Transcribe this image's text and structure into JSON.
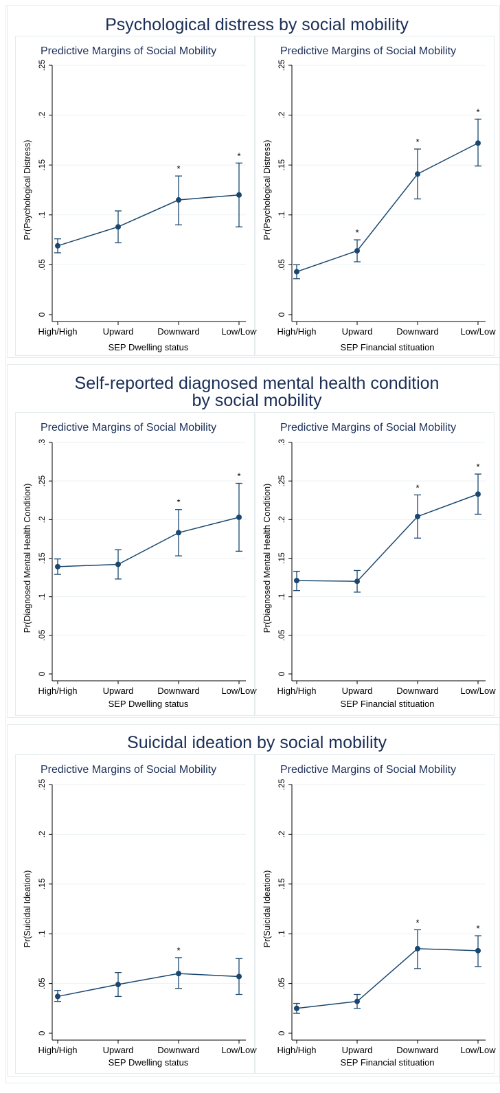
{
  "colors": {
    "line": "#1a476f",
    "text_title": "#1a2e57",
    "text": "#000000",
    "grid": "#eaf2f3",
    "frame": "#e4ecee"
  },
  "chart_data": [
    {
      "title": "Psychological distress by social mobility",
      "panels": [
        {
          "type": "line",
          "title": "Predictive Margins of Social Mobility",
          "xlabel": "SEP Dwelling status",
          "ylabel": "Pr(Psychological Distress)",
          "categories": [
            "High/High",
            "Upward",
            "Downward",
            "Low/Low"
          ],
          "values": [
            0.069,
            0.088,
            0.115,
            0.12
          ],
          "ci_low": [
            0.062,
            0.072,
            0.09,
            0.088
          ],
          "ci_high": [
            0.076,
            0.104,
            0.139,
            0.152
          ],
          "significant": [
            false,
            false,
            true,
            true
          ],
          "significance_mark": "*",
          "ylim": [
            0,
            0.25
          ],
          "yticks": [
            0,
            0.05,
            0.1,
            0.15,
            0.2,
            0.25
          ],
          "ytick_labels": [
            "0",
            ".05",
            ".1",
            ".15",
            ".2",
            ".25"
          ],
          "grid": true
        },
        {
          "type": "line",
          "title": "Predictive Margins of Social Mobility",
          "xlabel": "SEP Financial stituation",
          "ylabel": "Pr(Psychological Distress)",
          "categories": [
            "High/High",
            "Upward",
            "Downward",
            "Low/Low"
          ],
          "values": [
            0.043,
            0.064,
            0.141,
            0.172
          ],
          "ci_low": [
            0.036,
            0.053,
            0.116,
            0.149
          ],
          "ci_high": [
            0.05,
            0.075,
            0.166,
            0.196
          ],
          "significant": [
            false,
            true,
            true,
            true
          ],
          "significance_mark": "*",
          "ylim": [
            0,
            0.25
          ],
          "yticks": [
            0,
            0.05,
            0.1,
            0.15,
            0.2,
            0.25
          ],
          "ytick_labels": [
            "0",
            ".05",
            ".1",
            ".15",
            ".2",
            ".25"
          ],
          "grid": true
        }
      ]
    },
    {
      "title": "Self-reported diagnosed mental health condition",
      "title_line2": "by social mobility",
      "panels": [
        {
          "type": "line",
          "title": "Predictive Margins of Social Mobility",
          "xlabel": "SEP Dwelling status",
          "ylabel": "Pr(Diagnosed Mental Health Condition)",
          "categories": [
            "High/High",
            "Upward",
            "Downward",
            "Low/Low"
          ],
          "values": [
            0.139,
            0.142,
            0.183,
            0.203
          ],
          "ci_low": [
            0.129,
            0.123,
            0.153,
            0.159
          ],
          "ci_high": [
            0.149,
            0.161,
            0.213,
            0.247
          ],
          "significant": [
            false,
            false,
            true,
            true
          ],
          "significance_mark": "*",
          "ylim": [
            0,
            0.3
          ],
          "yticks": [
            0,
            0.05,
            0.1,
            0.15,
            0.2,
            0.25,
            0.3
          ],
          "ytick_labels": [
            "0",
            ".05",
            ".1",
            ".15",
            ".2",
            ".25",
            ".3"
          ],
          "grid": true
        },
        {
          "type": "line",
          "title": "Predictive Margins of Social Mobility",
          "xlabel": "SEP Financial stituation",
          "ylabel": "Pr(Diagnosed Mental Health Condition)",
          "categories": [
            "High/High",
            "Upward",
            "Downward",
            "Low/Low"
          ],
          "values": [
            0.121,
            0.12,
            0.204,
            0.233
          ],
          "ci_low": [
            0.108,
            0.106,
            0.176,
            0.207
          ],
          "ci_high": [
            0.133,
            0.134,
            0.232,
            0.259
          ],
          "significant": [
            false,
            false,
            true,
            true
          ],
          "significance_mark": "*",
          "ylim": [
            0,
            0.3
          ],
          "yticks": [
            0,
            0.05,
            0.1,
            0.15,
            0.2,
            0.25,
            0.3
          ],
          "ytick_labels": [
            "0",
            ".05",
            ".1",
            ".15",
            ".2",
            ".25",
            ".3"
          ],
          "grid": true
        }
      ]
    },
    {
      "title": "Suicidal ideation by social mobility",
      "panels": [
        {
          "type": "line",
          "title": "Predictive Margins of Social Mobility",
          "xlabel": "SEP Dwelling status",
          "ylabel": "Pr(Suicidal Ideation)",
          "categories": [
            "High/High",
            "Upward",
            "Downward",
            "Low/Low"
          ],
          "values": [
            0.037,
            0.049,
            0.06,
            0.057
          ],
          "ci_low": [
            0.032,
            0.037,
            0.045,
            0.039
          ],
          "ci_high": [
            0.043,
            0.061,
            0.076,
            0.075
          ],
          "significant": [
            false,
            false,
            true,
            false
          ],
          "significance_mark": "*",
          "ylim": [
            0,
            0.25
          ],
          "yticks": [
            0,
            0.05,
            0.1,
            0.15,
            0.2,
            0.25
          ],
          "ytick_labels": [
            "0",
            ".05",
            ".1",
            ".15",
            ".2",
            ".25"
          ],
          "grid": true
        },
        {
          "type": "line",
          "title": "Predictive Margins of Social Mobility",
          "xlabel": "SEP Financial stituation",
          "ylabel": "Pr(Suicidal Ideation)",
          "categories": [
            "High/High",
            "Upward",
            "Downward",
            "Low/Low"
          ],
          "values": [
            0.025,
            0.032,
            0.085,
            0.083
          ],
          "ci_low": [
            0.02,
            0.025,
            0.065,
            0.067
          ],
          "ci_high": [
            0.03,
            0.039,
            0.104,
            0.098
          ],
          "significant": [
            false,
            false,
            true,
            true
          ],
          "significance_mark": "*",
          "ylim": [
            0,
            0.25
          ],
          "yticks": [
            0,
            0.05,
            0.1,
            0.15,
            0.2,
            0.25
          ],
          "ytick_labels": [
            "0",
            ".05",
            ".1",
            ".15",
            ".2",
            ".25"
          ],
          "grid": true
        }
      ]
    }
  ]
}
